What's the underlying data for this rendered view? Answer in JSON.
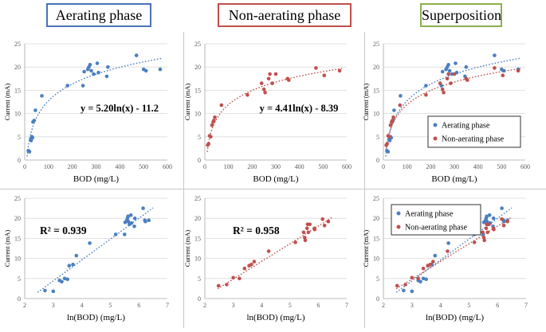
{
  "titles": {
    "aerating": "Aerating phase",
    "non_aerating": "Non-aerating phase",
    "superposition": "Superposition"
  },
  "colors": {
    "aerating": "#4a7fc1",
    "non_aerating": "#c0504d"
  },
  "chart_data": [
    {
      "id": "c1",
      "type": "scatter",
      "title": "",
      "xlabel": "BOD  (mg/L)",
      "ylabel": "Current (mA)",
      "xlim": [
        0,
        600
      ],
      "ylim": [
        0,
        25
      ],
      "xticks": [
        0,
        100,
        200,
        300,
        400,
        500,
        600
      ],
      "yticks": [
        0,
        5,
        10,
        15,
        20,
        25
      ],
      "series": [
        {
          "name": "Aerating phase",
          "color": "#4a7fc1",
          "x": [
            15,
            20,
            25,
            27,
            30,
            33,
            35,
            40,
            45,
            72,
            180,
            245,
            250,
            265,
            270,
            275,
            280,
            290,
            305,
            310,
            345,
            350,
            470,
            500,
            510,
            570
          ],
          "y": [
            2,
            1.8,
            4.5,
            4.2,
            5,
            4.8,
            8.2,
            8.5,
            10.7,
            13.8,
            16,
            16,
            19,
            19.5,
            20,
            20.5,
            19.2,
            18.5,
            20.8,
            18.8,
            18,
            20,
            22.5,
            19.5,
            19.2,
            19.5
          ]
        }
      ],
      "trendlines": [
        {
          "color": "#4a7fc1",
          "equation": "y = 5.20ln(x) - 11.2",
          "a": 5.2,
          "b": -11.2
        }
      ]
    },
    {
      "id": "c2",
      "type": "scatter",
      "title": "",
      "xlabel": "BOD  (mg/L)",
      "ylabel": "Current (mA)",
      "xlim": [
        0,
        600
      ],
      "ylim": [
        0,
        25
      ],
      "xticks": [
        0,
        100,
        200,
        300,
        400,
        500,
        600
      ],
      "yticks": [
        0,
        5,
        10,
        15,
        20,
        25
      ],
      "series": [
        {
          "name": "Non-aerating phase",
          "color": "#c0504d",
          "x": [
            12,
            16,
            20,
            25,
            30,
            35,
            38,
            42,
            70,
            180,
            240,
            250,
            255,
            270,
            275,
            285,
            300,
            350,
            355,
            470,
            505,
            570
          ],
          "y": [
            3.2,
            3.5,
            5.2,
            5.0,
            7.5,
            8.2,
            8.5,
            9.2,
            11.8,
            14,
            16.5,
            15.2,
            14.5,
            17.5,
            18.5,
            16.5,
            18.5,
            17.5,
            17.2,
            19.8,
            18.2,
            19.2
          ]
        }
      ],
      "trendlines": [
        {
          "color": "#c0504d",
          "equation": "y = 4.41ln(x) - 8.39",
          "a": 4.41,
          "b": -8.39
        }
      ]
    },
    {
      "id": "c3",
      "type": "scatter",
      "title": "",
      "xlabel": "BOD  (mg/L)",
      "ylabel": "Current (mA)",
      "xlim": [
        0,
        600
      ],
      "ylim": [
        0,
        25
      ],
      "xticks": [
        0,
        100,
        200,
        300,
        400,
        500,
        600
      ],
      "yticks": [
        0,
        5,
        10,
        15,
        20,
        25
      ],
      "legend": "right",
      "series": [
        {
          "name": "Aerating phase",
          "color": "#4a7fc1",
          "x": [
            15,
            20,
            25,
            27,
            30,
            33,
            35,
            40,
            45,
            72,
            180,
            245,
            250,
            265,
            270,
            275,
            280,
            290,
            305,
            310,
            345,
            350,
            470,
            500,
            510,
            570
          ],
          "y": [
            2,
            1.8,
            4.5,
            4.2,
            5,
            4.8,
            8.2,
            8.5,
            10.7,
            13.8,
            16,
            16,
            19,
            19.5,
            20,
            20.5,
            19.2,
            18.5,
            20.8,
            18.8,
            18,
            20,
            22.5,
            19.5,
            19.2,
            19.5
          ]
        },
        {
          "name": "Non-aerating phase",
          "color": "#c0504d",
          "x": [
            12,
            16,
            20,
            25,
            30,
            35,
            38,
            42,
            70,
            180,
            240,
            250,
            255,
            270,
            275,
            285,
            300,
            350,
            355,
            470,
            505,
            570
          ],
          "y": [
            3.2,
            3.5,
            5.2,
            5.0,
            7.5,
            8.2,
            8.5,
            9.2,
            11.8,
            14,
            16.5,
            15.2,
            14.5,
            17.5,
            18.5,
            16.5,
            18.5,
            17.5,
            17.2,
            19.8,
            18.2,
            19.2
          ]
        }
      ],
      "trendlines": [
        {
          "color": "#4a7fc1",
          "a": 5.2,
          "b": -11.2
        },
        {
          "color": "#c0504d",
          "a": 4.41,
          "b": -8.39
        }
      ]
    },
    {
      "id": "c4",
      "type": "scatter",
      "title": "",
      "xlabel": "ln(BOD)  (mg/L)",
      "ylabel": "Current (mA)",
      "xlim": [
        2,
        7
      ],
      "ylim": [
        0,
        25
      ],
      "xticks": [
        2,
        3,
        4,
        5,
        6,
        7
      ],
      "yticks": [
        0,
        5,
        10,
        15,
        20,
        25
      ],
      "series": [
        {
          "name": "Aerating phase",
          "color": "#4a7fc1",
          "x": [
            2.71,
            3.0,
            3.22,
            3.3,
            3.4,
            3.5,
            3.56,
            3.69,
            3.81,
            4.28,
            5.19,
            5.5,
            5.52,
            5.58,
            5.6,
            5.62,
            5.63,
            5.67,
            5.72,
            5.74,
            5.84,
            5.86,
            6.15,
            6.21,
            6.23,
            6.35
          ],
          "y": [
            2,
            1.8,
            4.5,
            4.2,
            5,
            4.8,
            8.2,
            8.5,
            10.7,
            13.8,
            16,
            16,
            19,
            19.5,
            20,
            20.5,
            19.2,
            18.5,
            20.8,
            18.8,
            18,
            20,
            22.5,
            19.5,
            19.2,
            19.5
          ]
        }
      ],
      "trendlines": [
        {
          "color": "#4a7fc1",
          "type": "linear",
          "slope": 5.2,
          "intercept": -11.2,
          "r2_label": "R² = 0.939"
        }
      ]
    },
    {
      "id": "c5",
      "type": "scatter",
      "title": "",
      "xlabel": "ln(BOD)  (mg/L)",
      "ylabel": "Current (mA)",
      "xlim": [
        2,
        7
      ],
      "ylim": [
        0,
        25
      ],
      "xticks": [
        2,
        3,
        4,
        5,
        6,
        7
      ],
      "yticks": [
        0,
        5,
        10,
        15,
        20,
        25
      ],
      "series": [
        {
          "name": "Non-aerating phase",
          "color": "#c0504d",
          "x": [
            2.48,
            2.77,
            3.0,
            3.22,
            3.4,
            3.56,
            3.64,
            3.74,
            4.25,
            5.19,
            5.48,
            5.52,
            5.54,
            5.6,
            5.62,
            5.65,
            5.7,
            5.86,
            5.87,
            6.15,
            6.22,
            6.35
          ],
          "y": [
            3.2,
            3.5,
            5.2,
            5.0,
            7.5,
            8.2,
            8.5,
            9.2,
            11.8,
            14,
            16.5,
            15.2,
            14.5,
            17.5,
            18.5,
            16.5,
            18.5,
            17.5,
            17.2,
            19.8,
            18.2,
            19.2
          ]
        }
      ],
      "trendlines": [
        {
          "color": "#c0504d",
          "type": "linear",
          "slope": 4.41,
          "intercept": -8.39,
          "r2_label": "R² = 0.958"
        }
      ]
    },
    {
      "id": "c6",
      "type": "scatter",
      "title": "",
      "xlabel": "ln(BOD)  (mg/L)",
      "ylabel": "Current (mA)",
      "xlim": [
        2,
        7
      ],
      "ylim": [
        0,
        25
      ],
      "xticks": [
        2,
        3,
        4,
        5,
        6,
        7
      ],
      "yticks": [
        0,
        5,
        10,
        15,
        20,
        25
      ],
      "legend": "top-left",
      "series": [
        {
          "name": "Aerating phase",
          "color": "#4a7fc1",
          "x": [
            2.71,
            3.0,
            3.22,
            3.3,
            3.4,
            3.5,
            3.56,
            3.69,
            3.81,
            4.28,
            5.19,
            5.5,
            5.52,
            5.58,
            5.6,
            5.62,
            5.63,
            5.67,
            5.72,
            5.74,
            5.84,
            5.86,
            6.15,
            6.21,
            6.23,
            6.35
          ],
          "y": [
            2,
            1.8,
            4.5,
            4.2,
            5,
            4.8,
            8.2,
            8.5,
            10.7,
            13.8,
            16,
            16,
            19,
            19.5,
            20,
            20.5,
            19.2,
            18.5,
            20.8,
            18.8,
            18,
            20,
            22.5,
            19.5,
            19.2,
            19.5
          ]
        },
        {
          "name": "Non-aerating phase",
          "color": "#c0504d",
          "x": [
            2.48,
            2.77,
            3.0,
            3.22,
            3.4,
            3.56,
            3.64,
            3.74,
            4.25,
            5.19,
            5.48,
            5.52,
            5.54,
            5.6,
            5.62,
            5.65,
            5.7,
            5.86,
            5.87,
            6.15,
            6.22,
            6.35
          ],
          "y": [
            3.2,
            3.5,
            5.2,
            5.0,
            7.5,
            8.2,
            8.5,
            9.2,
            11.8,
            14,
            16.5,
            15.2,
            14.5,
            17.5,
            18.5,
            16.5,
            18.5,
            17.5,
            17.2,
            19.8,
            18.2,
            19.2
          ]
        }
      ],
      "trendlines": [
        {
          "color": "#4a7fc1",
          "type": "linear",
          "slope": 5.2,
          "intercept": -11.2
        },
        {
          "color": "#c0504d",
          "type": "linear",
          "slope": 4.41,
          "intercept": -8.39
        }
      ]
    }
  ]
}
